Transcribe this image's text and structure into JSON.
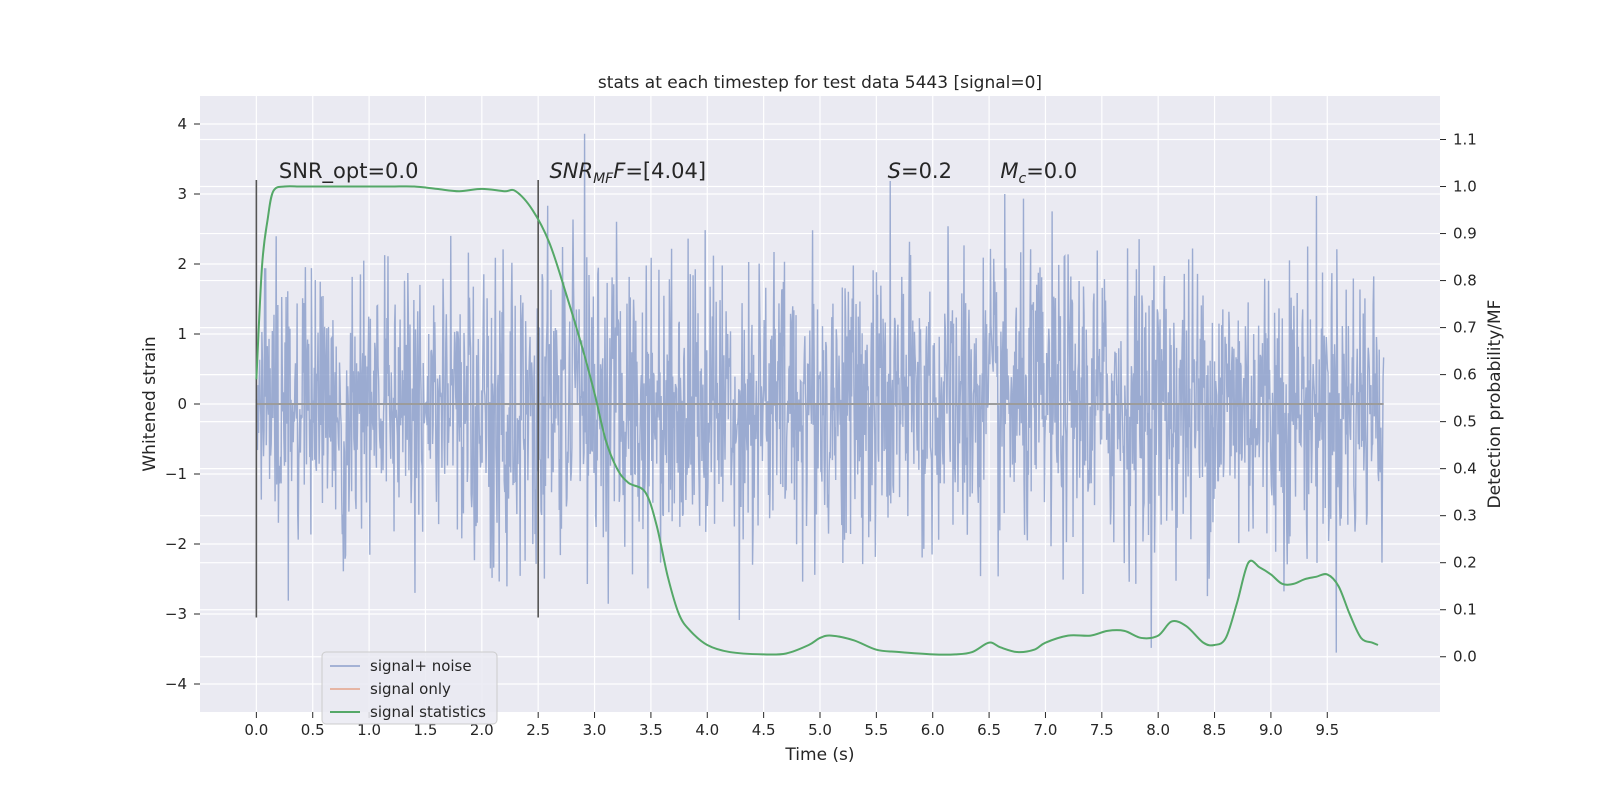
{
  "chart_data": {
    "type": "line",
    "title": "stats at each timestep for test data 5443 [signal=0]",
    "xlabel": "Time (s)",
    "ylabel": "Whitened strain",
    "y2label": "Detection probability/MF",
    "xlim": [
      -0.5,
      10.5
    ],
    "ylim": [
      -4.4,
      4.4
    ],
    "y2lim": [
      -0.1175,
      1.1925
    ],
    "x_ticks": [
      0.0,
      0.5,
      1.0,
      1.5,
      2.0,
      2.5,
      3.0,
      3.5,
      4.0,
      4.5,
      5.0,
      5.5,
      6.0,
      6.5,
      7.0,
      7.5,
      8.0,
      8.5,
      9.0,
      9.5
    ],
    "x_tick_labels": [
      "0.0",
      "0.5",
      "1.0",
      "1.5",
      "2.0",
      "2.5",
      "3.0",
      "3.5",
      "4.0",
      "4.5",
      "5.0",
      "5.5",
      "6.0",
      "6.5",
      "7.0",
      "7.5",
      "8.0",
      "8.5",
      "9.0",
      "9.5"
    ],
    "y_ticks": [
      4,
      3,
      2,
      1,
      0,
      -1,
      -2,
      -3,
      -4
    ],
    "y_tick_labels": [
      "4",
      "3",
      "2",
      "1",
      "0",
      "−1",
      "−2",
      "−3",
      "−4"
    ],
    "y2_ticks": [
      1.1,
      1.0,
      0.9,
      0.8,
      0.7,
      0.6,
      0.5,
      0.4,
      0.3,
      0.2,
      0.1,
      0.0
    ],
    "y2_tick_labels": [
      "1.1",
      "1.0",
      "0.9",
      "0.8",
      "0.7",
      "0.6",
      "0.5",
      "0.4",
      "0.3",
      "0.2",
      "0.1",
      "0.0"
    ],
    "grid": true,
    "legend_position": "bottom-left",
    "series": [
      {
        "name": "signal+ noise",
        "color": "#8da0cb",
        "axis": "left",
        "x_range": [
          0.0,
          10.0
        ],
        "sample_count": 2048,
        "approx_envelope": [
          -3.9,
          4.05
        ]
      },
      {
        "name": "signal only",
        "color": "#e5a38a",
        "axis": "left",
        "x": [
          0.0,
          10.0
        ],
        "y": [
          0.0,
          0.0
        ]
      },
      {
        "name": "signal statistics",
        "color": "#55a868",
        "axis": "right",
        "x": [
          0.0,
          0.05,
          0.1,
          0.15,
          0.25,
          0.4,
          0.6,
          0.8,
          1.0,
          1.2,
          1.4,
          1.6,
          1.8,
          2.0,
          2.2,
          2.3,
          2.45,
          2.6,
          2.75,
          2.9,
          3.0,
          3.1,
          3.2,
          3.3,
          3.45,
          3.55,
          3.65,
          3.75,
          3.85,
          4.0,
          4.2,
          4.5,
          4.7,
          4.9,
          5.0,
          5.1,
          5.3,
          5.5,
          5.7,
          6.0,
          6.2,
          6.35,
          6.5,
          6.6,
          6.75,
          6.9,
          7.0,
          7.2,
          7.4,
          7.55,
          7.7,
          7.85,
          8.0,
          8.12,
          8.25,
          8.4,
          8.5,
          8.6,
          8.7,
          8.8,
          8.9,
          9.0,
          9.1,
          9.2,
          9.3,
          9.4,
          9.5,
          9.6,
          9.7,
          9.8,
          9.9,
          9.95
        ],
        "y": [
          0.59,
          0.83,
          0.93,
          0.99,
          1.0,
          1.0,
          1.0,
          1.0,
          1.0,
          1.0,
          1.0,
          0.995,
          0.99,
          0.995,
          0.99,
          0.99,
          0.95,
          0.88,
          0.77,
          0.65,
          0.56,
          0.46,
          0.4,
          0.37,
          0.35,
          0.28,
          0.17,
          0.09,
          0.055,
          0.025,
          0.01,
          0.005,
          0.007,
          0.025,
          0.04,
          0.045,
          0.035,
          0.015,
          0.01,
          0.005,
          0.005,
          0.01,
          0.03,
          0.02,
          0.01,
          0.015,
          0.03,
          0.045,
          0.045,
          0.055,
          0.055,
          0.04,
          0.045,
          0.075,
          0.065,
          0.03,
          0.025,
          0.04,
          0.115,
          0.2,
          0.19,
          0.175,
          0.155,
          0.155,
          0.165,
          0.17,
          0.175,
          0.15,
          0.09,
          0.04,
          0.03,
          0.025
        ]
      }
    ],
    "vertical_lines": [
      {
        "x": 0.0,
        "ymin": -3.05,
        "ymax": 3.2,
        "color": "#555555"
      },
      {
        "x": 2.5,
        "ymin": -3.05,
        "ymax": 3.2,
        "color": "#555555"
      }
    ],
    "annotations": [
      {
        "x": 0.2,
        "y": 3.23,
        "segments": [
          {
            "t": "SNR_opt=0.0",
            "style": "normal"
          }
        ]
      },
      {
        "x": 2.6,
        "y": 3.23,
        "segments": [
          {
            "t": "SNR",
            "style": "italic"
          },
          {
            "t": "MF",
            "style": "italic-sub"
          },
          {
            "t": "F",
            "style": "italic"
          },
          {
            "t": "=[4.04]",
            "style": "normal"
          }
        ]
      },
      {
        "x": 5.6,
        "y": 3.23,
        "segments": [
          {
            "t": "S",
            "style": "italic"
          },
          {
            "t": "=0.2",
            "style": "normal"
          }
        ]
      },
      {
        "x": 6.6,
        "y": 3.23,
        "segments": [
          {
            "t": "M",
            "style": "italic"
          },
          {
            "t": "c",
            "style": "italic-sub"
          },
          {
            "t": "=0.0",
            "style": "normal"
          }
        ]
      }
    ],
    "colors": {
      "plot_background": "#eaeaf2",
      "grid": "#ffffff",
      "text": "#262626",
      "legend_background": "#eaeaf2",
      "legend_border": "#cccccc"
    }
  }
}
